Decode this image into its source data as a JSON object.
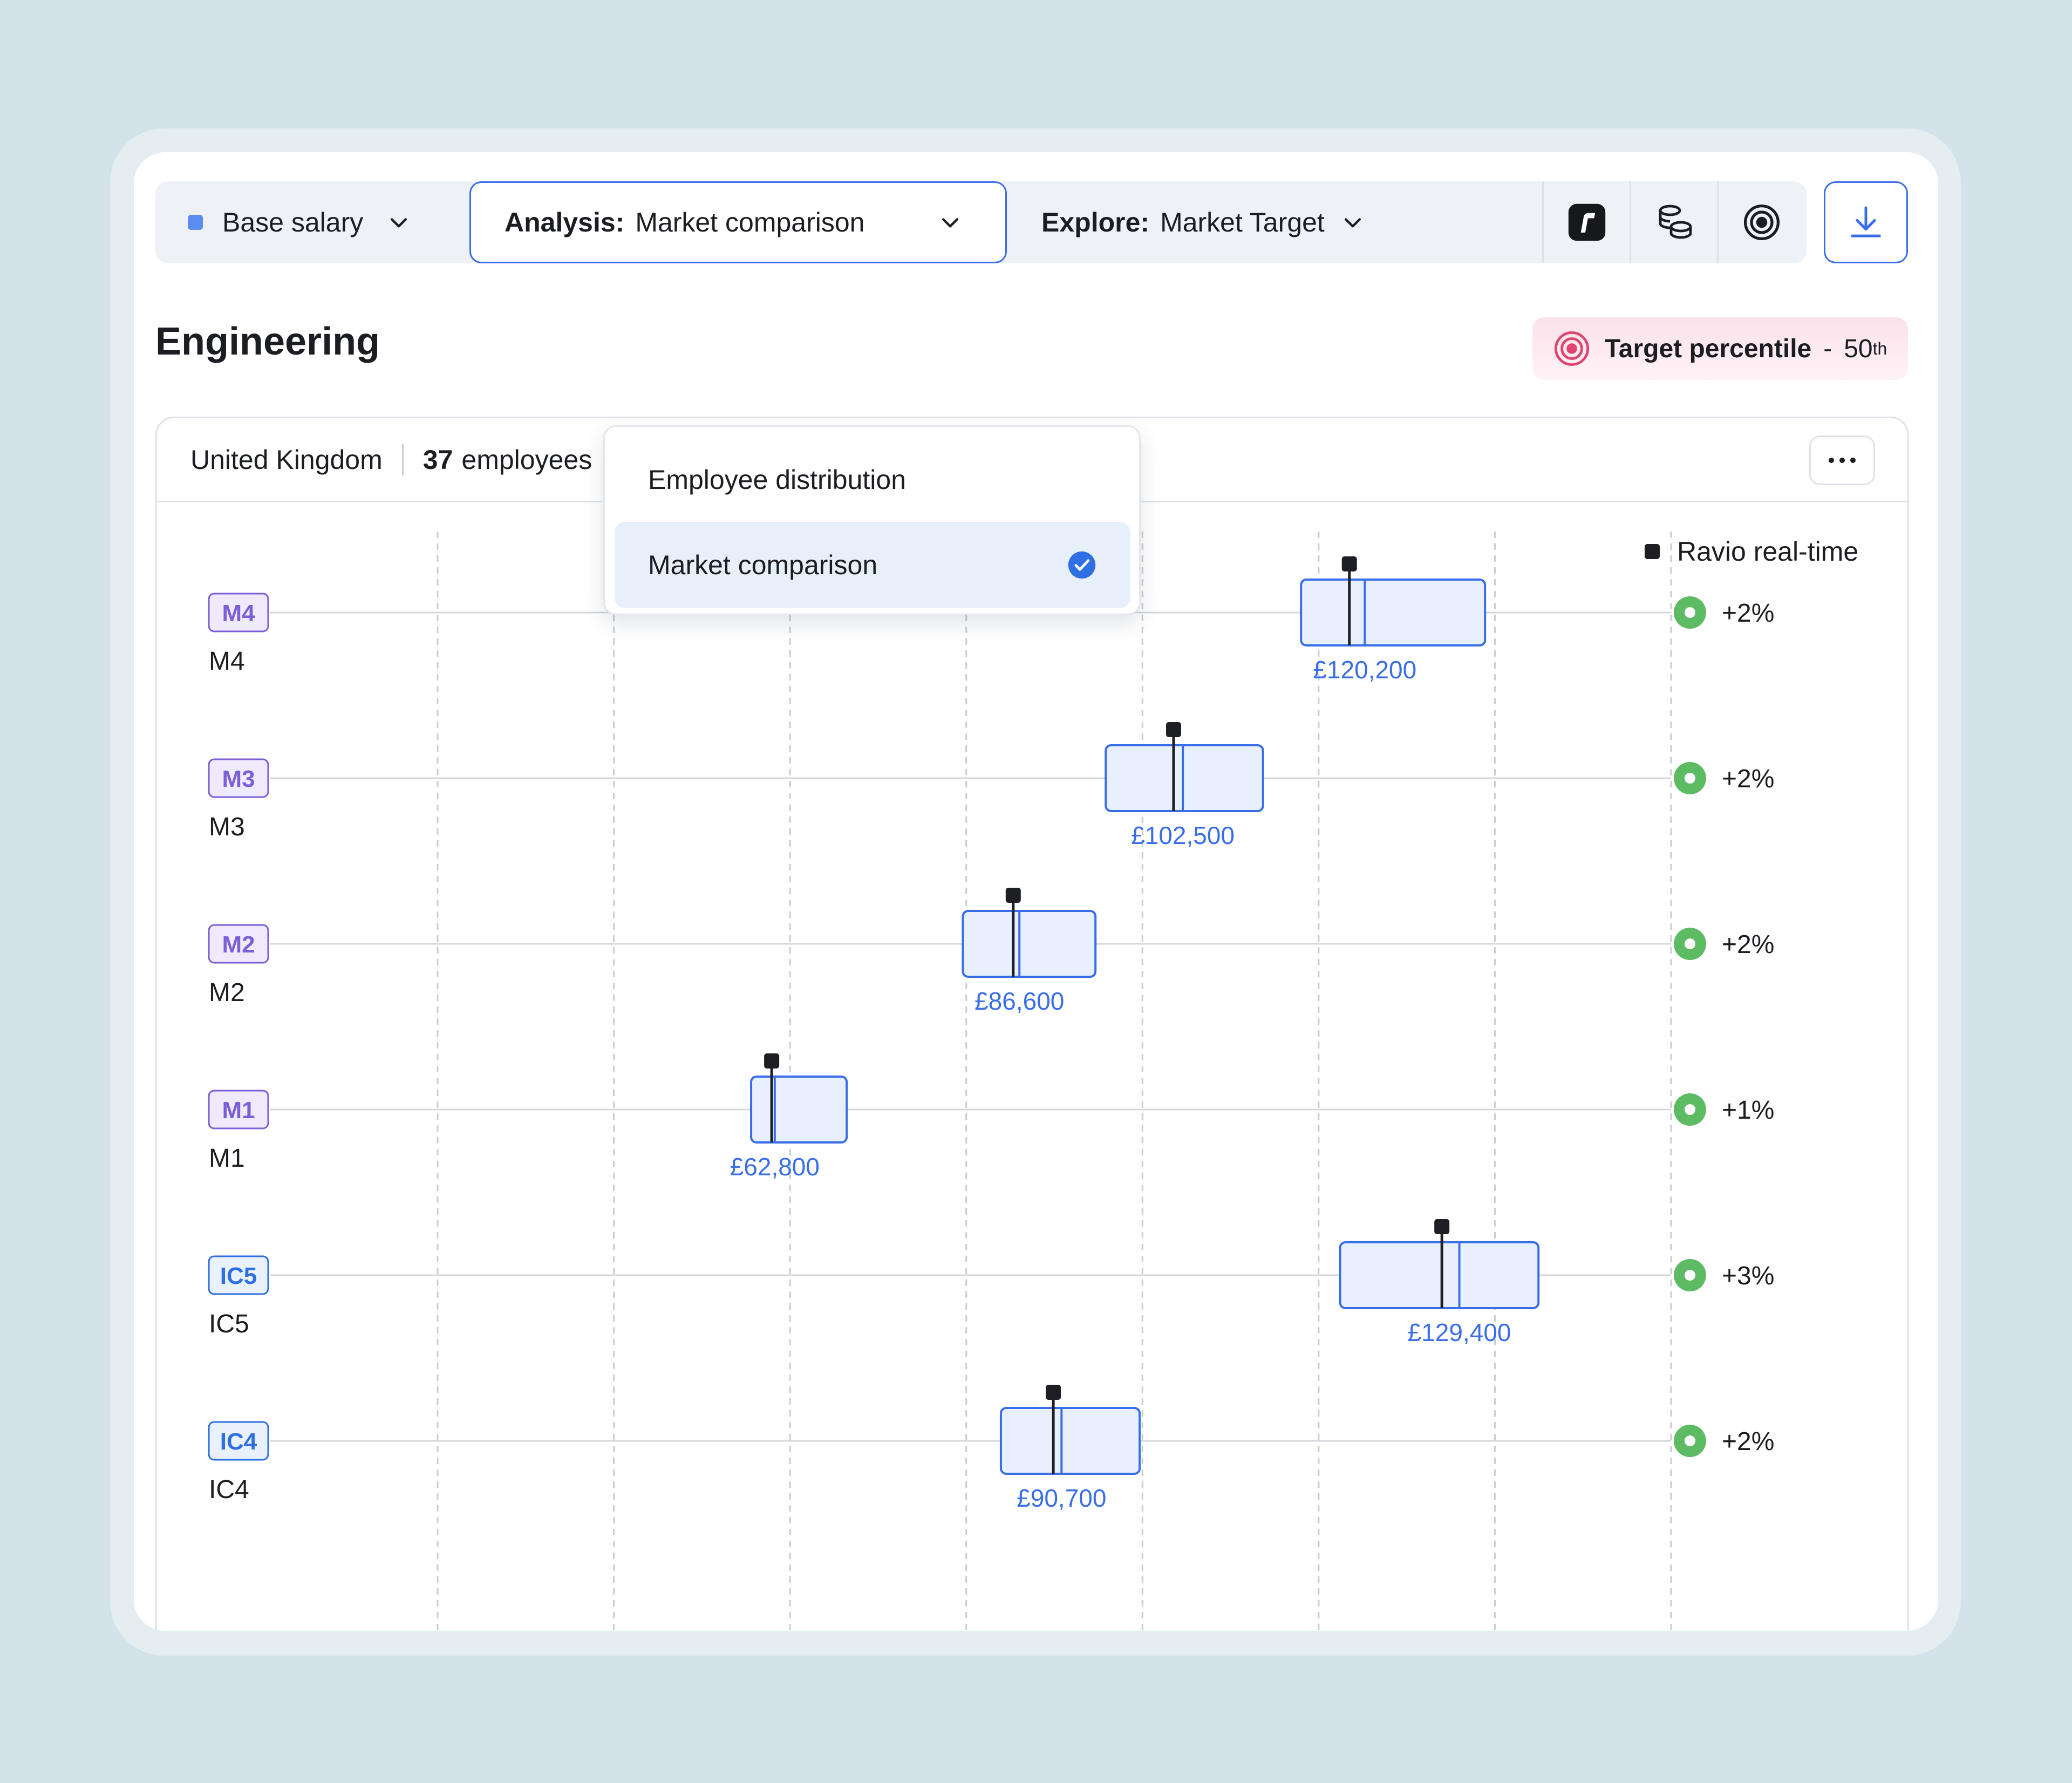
{
  "toolbar": {
    "metric_label": "Base salary",
    "analysis_prefix": "Analysis:",
    "analysis_value": "Market comparison",
    "explore_prefix": "Explore:",
    "explore_value": "Market Target",
    "icons": [
      "ravio-logo-icon",
      "coins-icon",
      "target-icon"
    ],
    "download_icon": "download-icon"
  },
  "dropdown": {
    "items": [
      {
        "label": "Employee distribution",
        "selected": false
      },
      {
        "label": "Market comparison",
        "selected": true
      }
    ]
  },
  "page": {
    "title": "Engineering",
    "target_label": "Target percentile",
    "target_sep": "-",
    "target_value": "50",
    "target_suffix": "th"
  },
  "panel": {
    "country": "United Kingdom",
    "employee_count": "37",
    "employee_word": "employees"
  },
  "legend": {
    "label": "Ravio real-time"
  },
  "colors": {
    "accent": "#3a6ee8",
    "box_fill": "#e8f0fd",
    "good": "#5dbb63",
    "tag_m": "#7a5fd6",
    "tag_ic": "#2f6fe4"
  },
  "chart_data": {
    "type": "boxplot",
    "currency": "GBP",
    "rows": [
      {
        "tag": "M4",
        "label": "M4",
        "median_label": "£120,200",
        "box_range": [
          114000,
          131900
        ],
        "median": 120200,
        "realtime": 118700,
        "delta": "+2%",
        "status": "good"
      },
      {
        "tag": "M3",
        "label": "M3",
        "median_label": "£102,500",
        "box_range": [
          95000,
          110300
        ],
        "median": 102500,
        "realtime": 101600,
        "delta": "+2%",
        "status": "good"
      },
      {
        "tag": "M2",
        "label": "M2",
        "median_label": "£86,600",
        "box_range": [
          81100,
          94000
        ],
        "median": 86600,
        "realtime": 86000,
        "delta": "+2%",
        "status": "good"
      },
      {
        "tag": "M1",
        "label": "M1",
        "median_label": "£62,800",
        "box_range": [
          60500,
          69800
        ],
        "median": 62800,
        "realtime": 62500,
        "delta": "+1%",
        "status": "good"
      },
      {
        "tag": "IC5",
        "label": "IC5",
        "median_label": "£129,400",
        "box_range": [
          117800,
          137100
        ],
        "median": 129400,
        "realtime": 127700,
        "delta": "+3%",
        "status": "good"
      },
      {
        "tag": "IC4",
        "label": "IC4",
        "median_label": "£90,700",
        "box_range": [
          84800,
          98300
        ],
        "median": 90700,
        "realtime": 89900,
        "delta": "+2%",
        "status": "good"
      }
    ],
    "xlim": [
      30000,
      150000
    ],
    "grid": "vertical-dashed"
  }
}
